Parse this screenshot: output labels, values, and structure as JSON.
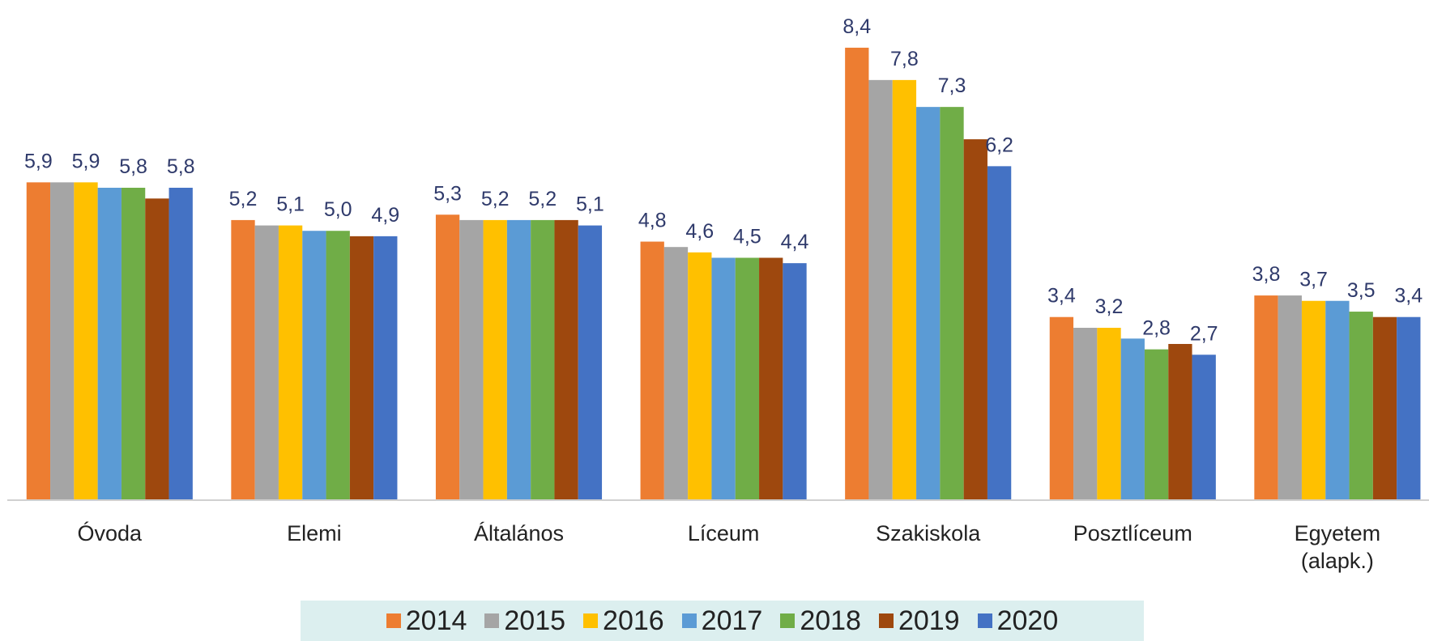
{
  "chart_data": {
    "type": "bar",
    "categories": [
      "Óvoda",
      "Elemi",
      "Általános",
      "Líceum",
      "Szakiskola",
      "Posztlíceum",
      "Egyetem (alapk.)"
    ],
    "series": [
      {
        "name": "2014",
        "color": "#ed7d31",
        "values": [
          5.9,
          5.2,
          5.3,
          4.8,
          8.4,
          3.4,
          3.8
        ],
        "value_labels": [
          "5,9",
          "5,2",
          "5,3",
          "4,8",
          "8,4",
          "3,4",
          "3,8"
        ]
      },
      {
        "name": "2015",
        "color": "#a5a5a5",
        "values": [
          5.9,
          5.1,
          5.2,
          4.7,
          7.8,
          3.2,
          3.8
        ]
      },
      {
        "name": "2016",
        "color": "#ffc000",
        "values": [
          5.9,
          5.1,
          5.2,
          4.6,
          7.8,
          3.2,
          3.7
        ],
        "value_labels": [
          "5,9",
          "5,1",
          "5,2",
          "4,6",
          "7,8",
          "3,2",
          "3,7"
        ]
      },
      {
        "name": "2017",
        "color": "#5b9bd5",
        "values": [
          5.8,
          5.0,
          5.2,
          4.5,
          7.3,
          3.0,
          3.7
        ]
      },
      {
        "name": "2018",
        "color": "#70ad47",
        "values": [
          5.8,
          5.0,
          5.2,
          4.5,
          7.3,
          2.8,
          3.5
        ],
        "value_labels": [
          "5,8",
          "5,0",
          "5,2",
          "4,5",
          "7,3",
          "2,8",
          "3,5"
        ]
      },
      {
        "name": "2019",
        "color": "#9e480e",
        "values": [
          5.6,
          4.9,
          5.2,
          4.5,
          6.7,
          2.9,
          3.4
        ]
      },
      {
        "name": "2020",
        "color": "#4472c4",
        "values": [
          5.8,
          4.9,
          5.1,
          4.4,
          6.2,
          2.7,
          3.4
        ],
        "value_labels": [
          "5,8",
          "4,9",
          "5,1",
          "4,4",
          "6,2",
          "2,7",
          "3,4"
        ]
      }
    ],
    "ylim": [
      0,
      9
    ],
    "legend": "bottom"
  }
}
